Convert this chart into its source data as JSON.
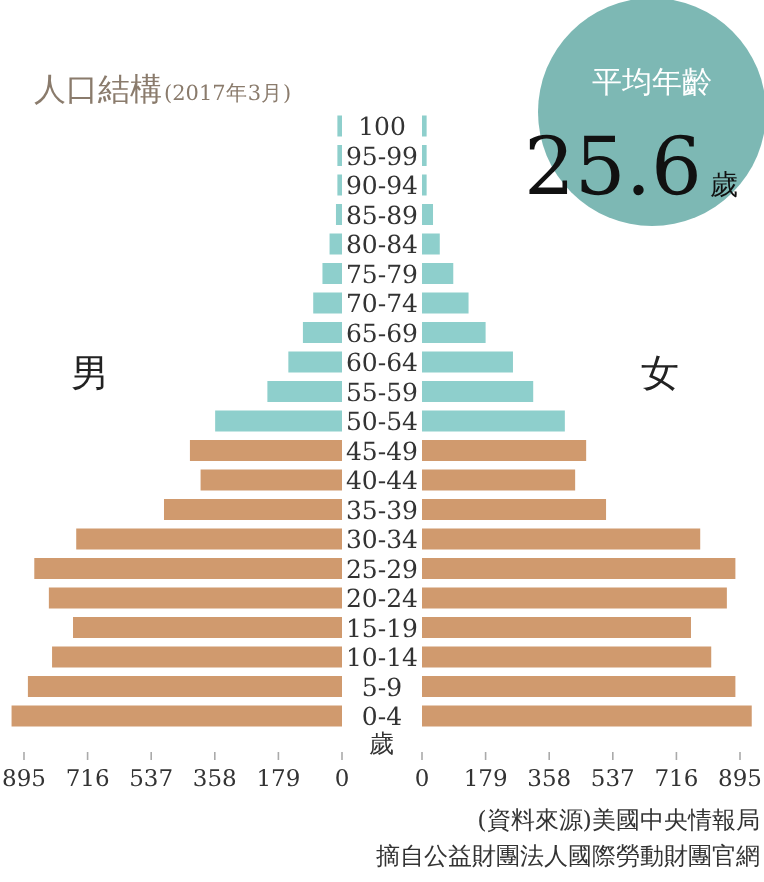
{
  "chart_data": [
    {
      "type": "bar",
      "orientation": "horizontal",
      "title": "人口結構",
      "subtitle": "(2017年3月)",
      "categories": [
        "100",
        "95-99",
        "90-94",
        "85-89",
        "80-84",
        "75-79",
        "70-74",
        "65-69",
        "60-64",
        "55-59",
        "50-54",
        "45-49",
        "40-44",
        "35-39",
        "30-34",
        "25-29",
        "20-24",
        "15-19",
        "10-14",
        "5-9",
        "0-4"
      ],
      "ylabel": "歲",
      "xlim": [
        940,
        0
      ],
      "xticks": [
        895,
        716,
        537,
        358,
        179,
        0
      ],
      "series": [
        {
          "name": "男",
          "colors": [
            "#8ecfcc",
            "#8ecfcc",
            "#8ecfcc",
            "#8ecfcc",
            "#8ecfcc",
            "#8ecfcc",
            "#8ecfcc",
            "#8ecfcc",
            "#8ecfcc",
            "#8ecfcc",
            "#8ecfcc",
            "#d09a6e",
            "#d09a6e",
            "#d09a6e",
            "#d09a6e",
            "#d09a6e",
            "#d09a6e",
            "#d09a6e",
            "#d09a6e",
            "#d09a6e",
            "#d09a6e"
          ],
          "values": [
            13,
            13,
            13,
            17,
            35,
            55,
            81,
            110,
            151,
            210,
            357,
            428,
            398,
            501,
            748,
            866,
            825,
            757,
            816,
            884,
            930
          ]
        }
      ]
    },
    {
      "type": "bar",
      "orientation": "horizontal",
      "categories": [
        null,
        null,
        null,
        null,
        null,
        null,
        null,
        null,
        null,
        null,
        null,
        null,
        null,
        null,
        null,
        null,
        null,
        null,
        null,
        null,
        null
      ],
      "xlim": [
        0,
        940
      ],
      "xticks": [
        0,
        179,
        358,
        537,
        716,
        895
      ],
      "series": [
        {
          "name": "女",
          "colors": [
            "#8ecfcc",
            "#8ecfcc",
            "#8ecfcc",
            "#8ecfcc",
            "#8ecfcc",
            "#8ecfcc",
            "#8ecfcc",
            "#8ecfcc",
            "#8ecfcc",
            "#8ecfcc",
            "#8ecfcc",
            "#d09a6e",
            "#d09a6e",
            "#d09a6e",
            "#d09a6e",
            "#d09a6e",
            "#d09a6e",
            "#d09a6e",
            "#d09a6e",
            "#d09a6e",
            "#d09a6e"
          ],
          "values": [
            13,
            13,
            13,
            31,
            50,
            88,
            131,
            179,
            256,
            313,
            402,
            462,
            431,
            518,
            783,
            882,
            858,
            757,
            814,
            882,
            928
          ]
        }
      ],
      "annotations": [
        "(資料來源)美國中央情報局",
        "摘自公益財團法人國際勞動財團官網"
      ]
    },
    {
      "type": "other",
      "title": "平均年齡",
      "annotations": [
        "25.6",
        "歲"
      ]
    }
  ]
}
